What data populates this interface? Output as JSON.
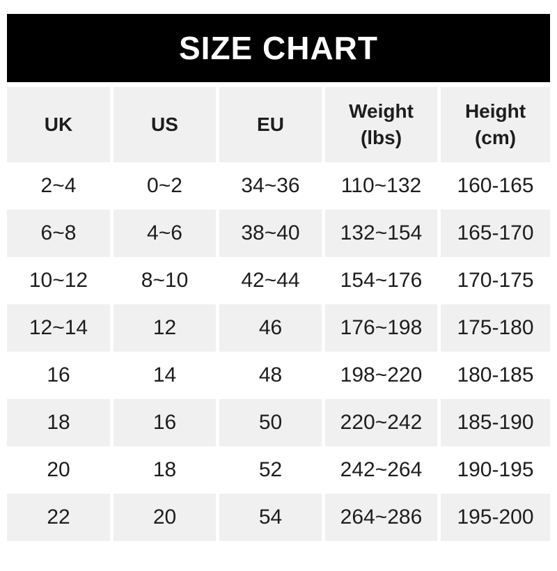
{
  "banner": {
    "title": "SIZE CHART"
  },
  "colors": {
    "banner_bg": "#000000",
    "banner_text": "#ffffff",
    "alt_row_bg": "#f0f0f0",
    "row_bg": "#ffffff",
    "text": "#1d1d1d",
    "page_bg": "#ffffff"
  },
  "table": {
    "headers": [
      {
        "label": "UK",
        "sub": ""
      },
      {
        "label": "US",
        "sub": ""
      },
      {
        "label": "EU",
        "sub": ""
      },
      {
        "label": "Weight",
        "sub": "(lbs)"
      },
      {
        "label": "Height",
        "sub": "(cm)"
      }
    ]
  },
  "chart_data": {
    "type": "table",
    "title": "SIZE CHART",
    "columns": [
      "UK",
      "US",
      "EU",
      "Weight (lbs)",
      "Height (cm)"
    ],
    "rows": [
      [
        "2~4",
        "0~2",
        "34~36",
        "110~132",
        "160-165"
      ],
      [
        "6~8",
        "4~6",
        "38~40",
        "132~154",
        "165-170"
      ],
      [
        "10~12",
        "8~10",
        "42~44",
        "154~176",
        "170-175"
      ],
      [
        "12~14",
        "12",
        "46",
        "176~198",
        "175-180"
      ],
      [
        "16",
        "14",
        "48",
        "198~220",
        "180-185"
      ],
      [
        "18",
        "16",
        "50",
        "220~242",
        "185-190"
      ],
      [
        "20",
        "18",
        "52",
        "242~264",
        "190-195"
      ],
      [
        "22",
        "20",
        "54",
        "264~286",
        "195-200"
      ]
    ]
  }
}
